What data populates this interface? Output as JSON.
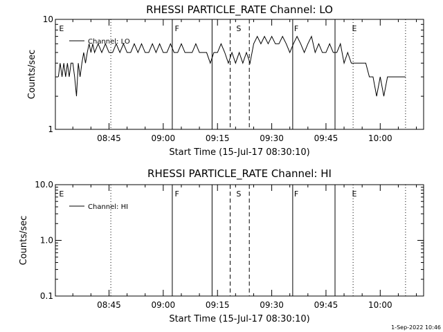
{
  "footer": {
    "timestamp": "1-Sep-2022 10:46"
  },
  "chart_data": [
    {
      "type": "line",
      "title": "RHESSI PARTICLE_RATE Channel: LO",
      "xlabel": "Start Time (15-Jul-17 08:30:10)",
      "ylabel": "Counts/sec",
      "y_scale": "log",
      "ylim": [
        1,
        10
      ],
      "xlim_minutes_after_0830": [
        0.17,
        102
      ],
      "x_tick_minutes_after_0830": [
        15,
        30,
        45,
        60,
        75,
        90
      ],
      "x_tick_labels": [
        "08:45",
        "09:00",
        "09:15",
        "09:30",
        "09:45",
        "10:00"
      ],
      "y_ticks": [
        1,
        10
      ],
      "y_tick_labels": [
        "1",
        "10"
      ],
      "legend": {
        "position": "top-left",
        "entries": [
          "Channel: LO"
        ]
      },
      "flag_labels": [
        {
          "text": "E",
          "minute": 1
        },
        {
          "text": "F",
          "minute": 33
        },
        {
          "text": "S",
          "minute": 50
        },
        {
          "text": "F",
          "minute": 66
        },
        {
          "text": "E",
          "minute": 82
        }
      ],
      "vertical_markers": [
        {
          "minute": 15.5,
          "style": "dotted"
        },
        {
          "minute": 32.5,
          "style": "solid"
        },
        {
          "minute": 43.5,
          "style": "solid"
        },
        {
          "minute": 48.5,
          "style": "dashed"
        },
        {
          "minute": 53.8,
          "style": "dashed"
        },
        {
          "minute": 65.8,
          "style": "solid"
        },
        {
          "minute": 77.5,
          "style": "solid"
        },
        {
          "minute": 82.5,
          "style": "dotted"
        },
        {
          "minute": 97,
          "style": "dotted"
        }
      ],
      "series": [
        {
          "x": [
            1,
            1.5,
            2,
            2.5,
            3,
            3.5,
            4,
            4.5,
            5,
            5.5,
            6,
            6.5,
            7,
            7.5,
            8,
            8.5,
            9,
            9.5,
            10,
            10.5,
            11,
            12,
            13,
            14,
            15,
            16,
            17,
            18,
            19,
            20,
            21,
            22,
            23,
            24,
            25,
            26,
            27,
            28,
            29,
            30,
            31,
            32,
            33,
            34,
            35,
            36,
            37,
            38,
            39,
            40,
            41,
            42,
            43,
            44,
            45,
            46,
            47,
            48,
            49,
            50,
            51,
            52,
            53,
            54,
            55,
            56,
            57,
            58,
            59,
            60,
            61,
            62,
            63,
            64,
            65,
            66,
            67,
            68,
            69,
            70,
            71,
            72,
            73,
            74,
            75,
            76,
            77,
            78,
            79,
            80,
            81,
            82,
            83,
            84,
            85,
            86,
            87,
            88,
            89,
            90,
            91,
            92,
            93,
            94,
            95,
            96,
            97
          ],
          "y": [
            3,
            4,
            3,
            4,
            3,
            4,
            3,
            4,
            4,
            3,
            2,
            4,
            3,
            4,
            5,
            4,
            5,
            6,
            5,
            6,
            5,
            6,
            5,
            6,
            5,
            5,
            6,
            5,
            6,
            5,
            5,
            6,
            5,
            6,
            5,
            5,
            6,
            5,
            6,
            5,
            5,
            6,
            5,
            5,
            6,
            5,
            5,
            5,
            6,
            5,
            5,
            5,
            4,
            5,
            5,
            6,
            5,
            4,
            5,
            4,
            5,
            4,
            5,
            4,
            6,
            7,
            6,
            7,
            6,
            7,
            6,
            6,
            7,
            6,
            5,
            6,
            7,
            6,
            5,
            6,
            7,
            5,
            6,
            5,
            5,
            6,
            5,
            5,
            6,
            4,
            5,
            4,
            4,
            4,
            4,
            4,
            3,
            3,
            2,
            3,
            2,
            3,
            3,
            3,
            3,
            3,
            3
          ]
        }
      ]
    },
    {
      "type": "line",
      "title": "RHESSI PARTICLE_RATE Channel: HI",
      "xlabel": "Start Time (15-Jul-17 08:30:10)",
      "ylabel": "Counts/sec",
      "y_scale": "log",
      "ylim": [
        0.1,
        10
      ],
      "xlim_minutes_after_0830": [
        0.17,
        102
      ],
      "x_tick_minutes_after_0830": [
        15,
        30,
        45,
        60,
        75,
        90
      ],
      "x_tick_labels": [
        "08:45",
        "09:00",
        "09:15",
        "09:30",
        "09:45",
        "10:00"
      ],
      "y_ticks": [
        0.1,
        1,
        10
      ],
      "y_tick_labels": [
        "0.1",
        "1.0",
        "10.0"
      ],
      "legend": {
        "position": "top-left",
        "entries": [
          "Channel: HI"
        ]
      },
      "flag_labels": [
        {
          "text": "E",
          "minute": 1
        },
        {
          "text": "F",
          "minute": 33
        },
        {
          "text": "S",
          "minute": 50
        },
        {
          "text": "F",
          "minute": 66
        },
        {
          "text": "E",
          "minute": 82
        }
      ],
      "vertical_markers": [
        {
          "minute": 15.5,
          "style": "dotted"
        },
        {
          "minute": 32.5,
          "style": "solid"
        },
        {
          "minute": 43.5,
          "style": "solid"
        },
        {
          "minute": 48.5,
          "style": "dashed"
        },
        {
          "minute": 53.8,
          "style": "dashed"
        },
        {
          "minute": 65.8,
          "style": "solid"
        },
        {
          "minute": 77.5,
          "style": "solid"
        },
        {
          "minute": 82.5,
          "style": "dotted"
        },
        {
          "minute": 97,
          "style": "dotted"
        }
      ],
      "series": [
        {
          "x": [],
          "y": []
        }
      ]
    }
  ]
}
